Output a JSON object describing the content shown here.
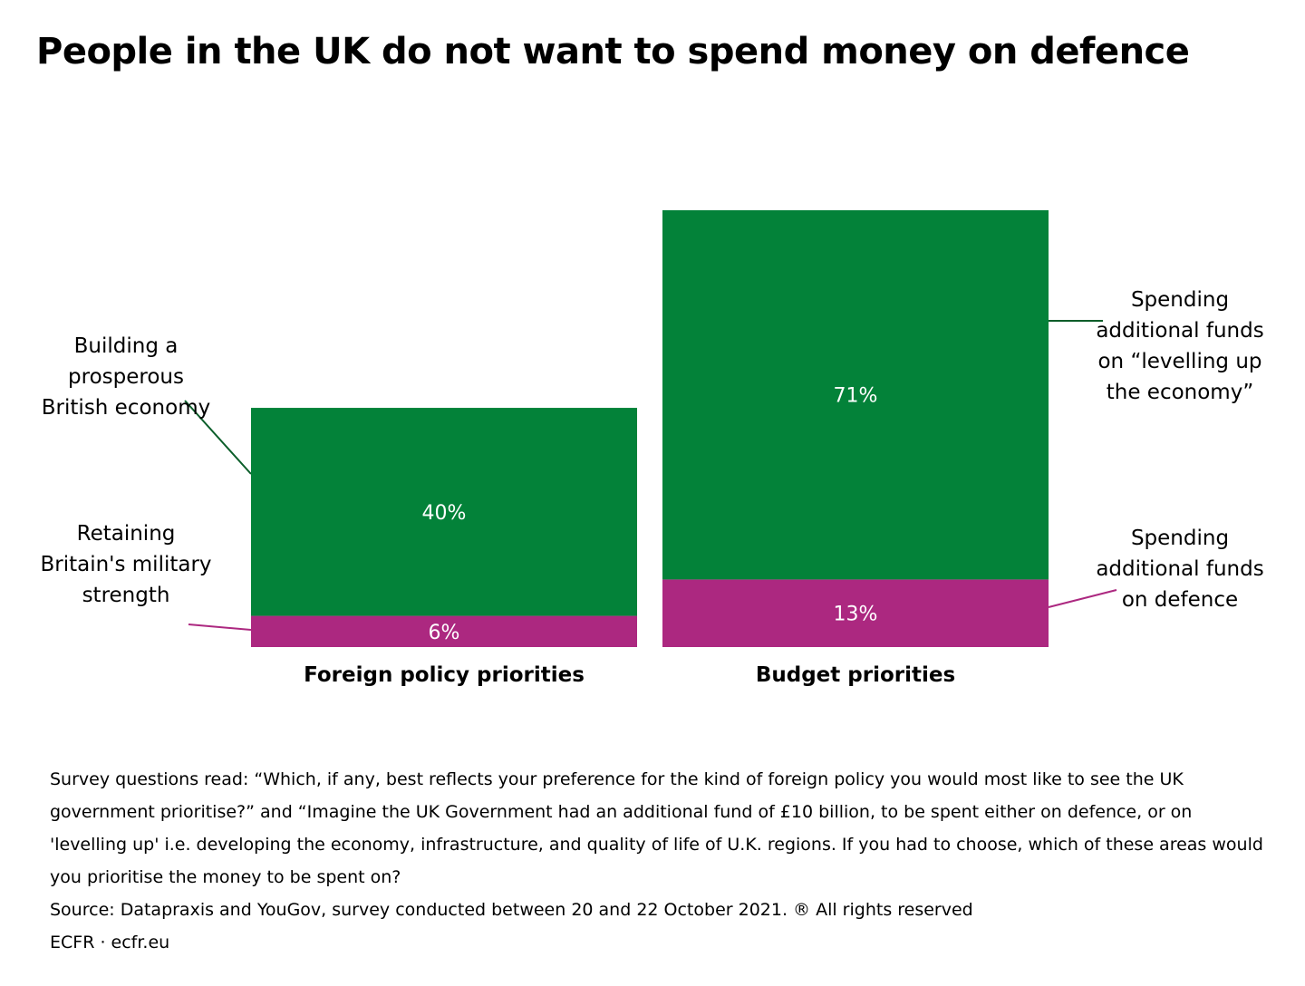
{
  "title": "People in the UK do not want to spend money on defence",
  "chart_data": {
    "type": "bar",
    "stacked": true,
    "categories": [
      "Foreign policy priorities",
      "Budget priorities"
    ],
    "series": [
      {
        "key": "defence",
        "values": [
          6,
          13
        ],
        "labels": [
          "6%",
          "13%"
        ],
        "color": "#ac2880"
      },
      {
        "key": "economy",
        "values": [
          40,
          71
        ],
        "labels": [
          "40%",
          "71%"
        ],
        "color": "#038239"
      }
    ],
    "unit": "%",
    "ylim": [
      0,
      84
    ],
    "grid": false,
    "annotations": {
      "foreign_economy": "Building a prosperous British economy",
      "foreign_defence": "Retaining Britain's military strength",
      "budget_economy": "Spending additional funds on “levelling up the economy”",
      "budget_defence": "Spending additional funds on defence"
    }
  },
  "notes": {
    "survey": "Survey questions read: “Which, if any, best reflects your preference for the kind of foreign policy you would most like to see the UK government prioritise?” and “Imagine the UK Government had an additional fund of £10 billion, to be spent either on defence, or on 'levelling up' i.e. developing the economy, infrastructure, and quality of life of U.K. regions. If you had to choose, which of these areas would you prioritise the money to be spent on?",
    "source": "Source: Datapraxis and YouGov, survey conducted between 20 and 22 October 2021. ® All rights reserved",
    "credit": "ECFR · ecfr.eu"
  }
}
